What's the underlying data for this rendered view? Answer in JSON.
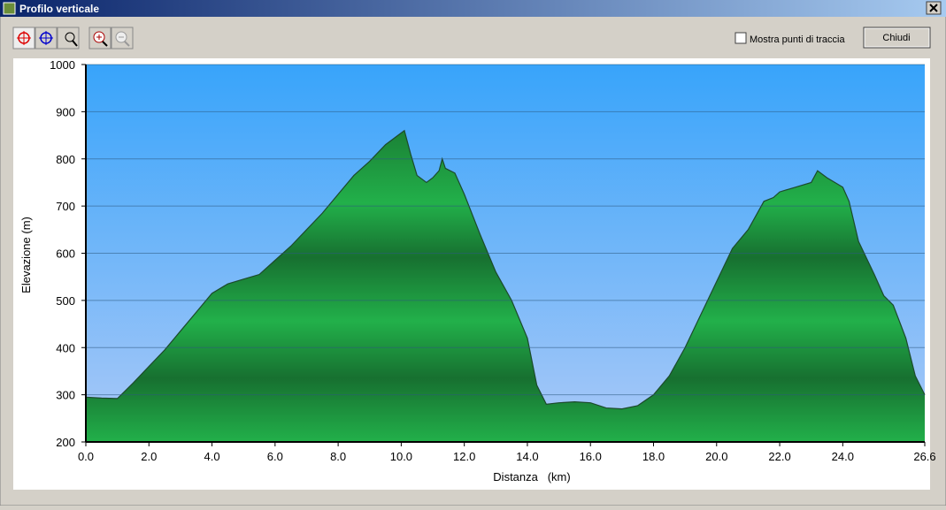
{
  "window": {
    "title": "Profilo verticale",
    "checkbox_label": "Mostra punti di traccia",
    "button_label": "Chiudi"
  },
  "chart_data": {
    "type": "area",
    "ylabel": "Elevazione (m)",
    "xlabel": "Distanza   (km)",
    "color": "#1fa343",
    "x": [
      0,
      0.5,
      1.0,
      1.2,
      1.5,
      2.0,
      2.5,
      3.0,
      3.5,
      4.0,
      4.5,
      5.0,
      5.5,
      6.0,
      6.5,
      7.0,
      7.5,
      8.0,
      8.5,
      9.0,
      9.5,
      10.0,
      10.1,
      10.3,
      10.5,
      10.8,
      11.0,
      11.2,
      11.3,
      11.4,
      11.7,
      12.0,
      12.5,
      13.0,
      13.5,
      14.0,
      14.3,
      14.6,
      15.0,
      15.5,
      16.0,
      16.5,
      17.0,
      17.5,
      18.0,
      18.5,
      19.0,
      19.5,
      20.0,
      20.5,
      21.0,
      21.5,
      21.8,
      22.0,
      22.5,
      23.0,
      23.2,
      23.5,
      24.0,
      24.2,
      24.5,
      25.0,
      25.3,
      25.6,
      26.0,
      26.3,
      26.6
    ],
    "values": [
      295,
      293,
      292,
      305,
      325,
      360,
      395,
      435,
      475,
      515,
      535,
      545,
      555,
      585,
      615,
      650,
      685,
      725,
      765,
      795,
      830,
      855,
      860,
      810,
      765,
      750,
      760,
      775,
      800,
      780,
      770,
      725,
      640,
      560,
      500,
      420,
      320,
      280,
      283,
      285,
      283,
      272,
      270,
      277,
      300,
      340,
      400,
      470,
      540,
      610,
      650,
      710,
      718,
      730,
      740,
      750,
      775,
      760,
      740,
      710,
      625,
      555,
      510,
      490,
      420,
      340,
      300
    ],
    "xlim": [
      0,
      26.6
    ],
    "ylim": [
      200,
      1000
    ],
    "xticks": [
      {
        "value": 0,
        "label": "0.0"
      },
      {
        "value": 2,
        "label": "2.0"
      },
      {
        "value": 4,
        "label": "4.0"
      },
      {
        "value": 6,
        "label": "6.0"
      },
      {
        "value": 8,
        "label": "8.0"
      },
      {
        "value": 10,
        "label": "10.0"
      },
      {
        "value": 12,
        "label": "12.0"
      },
      {
        "value": 14,
        "label": "14.0"
      },
      {
        "value": 16,
        "label": "16.0"
      },
      {
        "value": 18,
        "label": "18.0"
      },
      {
        "value": 20,
        "label": "20.0"
      },
      {
        "value": 22,
        "label": "22.0"
      },
      {
        "value": 24,
        "label": "24.0"
      },
      {
        "value": 26.6,
        "label": "26.6"
      }
    ],
    "yticks": [
      200,
      300,
      400,
      500,
      600,
      700,
      800,
      900,
      1000
    ],
    "grid": true
  }
}
